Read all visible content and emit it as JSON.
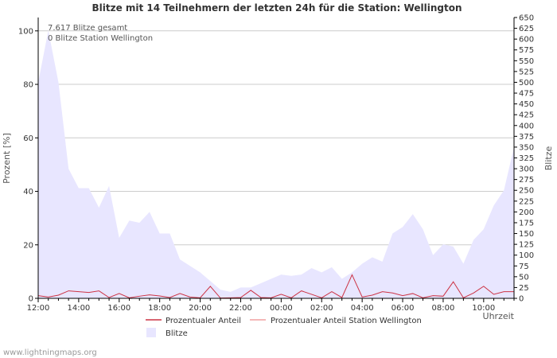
{
  "chart_data": {
    "type": "area",
    "title": "Blitze mit 14 Teilnehmern der letzten 24h für die Station: Wellington",
    "ylabel_left": "Prozent   [%]",
    "ylabel_right": "Blitze",
    "xlabel": "Uhrzeit",
    "ylim_left": [
      0,
      105
    ],
    "ylim_right": [
      0,
      650
    ],
    "yticks_left": [
      "0",
      "20",
      "40",
      "60",
      "80",
      "100"
    ],
    "yticks_right": [
      "0",
      "25",
      "50",
      "75",
      "100",
      "125",
      "150",
      "175",
      "200",
      "225",
      "250",
      "275",
      "300",
      "325",
      "350",
      "375",
      "400",
      "425",
      "450",
      "475",
      "500",
      "525",
      "550",
      "575",
      "600",
      "625",
      "650"
    ],
    "xticks": [
      "12:00",
      "14:00",
      "16:00",
      "18:00",
      "20:00",
      "22:00",
      "00:00",
      "02:00",
      "04:00",
      "06:00",
      "08:00",
      "10:00"
    ],
    "annotations": [
      "7.617 Blitze gesamt",
      "0 Blitze Station Wellington"
    ],
    "legend": [
      {
        "label": "Prozentualer Anteil",
        "color": "#cc3344"
      },
      {
        "label": "Prozentualer Anteil Station Wellington",
        "color": "#f0a0a0"
      },
      {
        "label": "Blitze",
        "color": "#e8e6ff"
      }
    ],
    "x_hours": [
      0,
      0.5,
      1,
      1.5,
      2,
      2.5,
      3,
      3.5,
      4,
      4.5,
      5,
      5.5,
      6,
      6.5,
      7,
      7.5,
      8,
      8.5,
      9,
      9.5,
      10,
      10.5,
      11,
      11.5,
      12,
      12.5,
      13,
      13.5,
      14,
      14.5,
      15,
      15.5,
      16,
      16.5,
      17,
      17.5,
      18,
      18.5,
      19,
      19.5,
      20,
      20.5,
      21,
      21.5,
      22,
      22.5,
      23,
      23.5
    ],
    "series": [
      {
        "name": "Blitze",
        "axis": "right",
        "values": [
          500,
          620,
          500,
          300,
          255,
          255,
          210,
          260,
          140,
          180,
          175,
          200,
          150,
          150,
          90,
          75,
          60,
          40,
          20,
          15,
          25,
          25,
          35,
          45,
          55,
          52,
          55,
          70,
          60,
          72,
          45,
          60,
          80,
          95,
          85,
          150,
          165,
          195,
          160,
          100,
          125,
          120,
          80,
          135,
          160,
          215,
          250,
          350
        ]
      },
      {
        "name": "Prozentualer Anteil",
        "axis": "left",
        "values": [
          1,
          0.5,
          1.2,
          2.8,
          2.5,
          2.2,
          2.8,
          0.3,
          1.8,
          0.2,
          0.8,
          1.3,
          0.9,
          0.3,
          1.8,
          0.5,
          0.2,
          4.5,
          0.1,
          0.2,
          0.3,
          3,
          0.3,
          0.2,
          1.5,
          0.2,
          2.8,
          1.5,
          0.2,
          2.5,
          0.3,
          8.8,
          0.5,
          1.2,
          2.5,
          2,
          1,
          1.8,
          0.2,
          1,
          0.8,
          6.2,
          0.2,
          2,
          4.5,
          1.5,
          2.5,
          2.5
        ]
      },
      {
        "name": "Prozentualer Anteil Station Wellington",
        "axis": "left",
        "values": [
          0,
          0,
          0,
          0,
          0,
          0,
          0,
          0,
          0,
          0,
          0,
          0,
          0,
          0,
          0,
          0,
          0,
          0,
          0,
          0,
          0,
          0,
          0,
          0,
          0,
          0,
          0,
          0,
          0,
          0,
          0,
          0,
          0,
          0,
          0,
          0,
          0,
          0,
          0,
          0,
          0,
          0,
          0,
          0,
          0,
          0,
          0,
          0
        ]
      }
    ]
  },
  "footer": {
    "credit": "www.lightningmaps.org"
  }
}
